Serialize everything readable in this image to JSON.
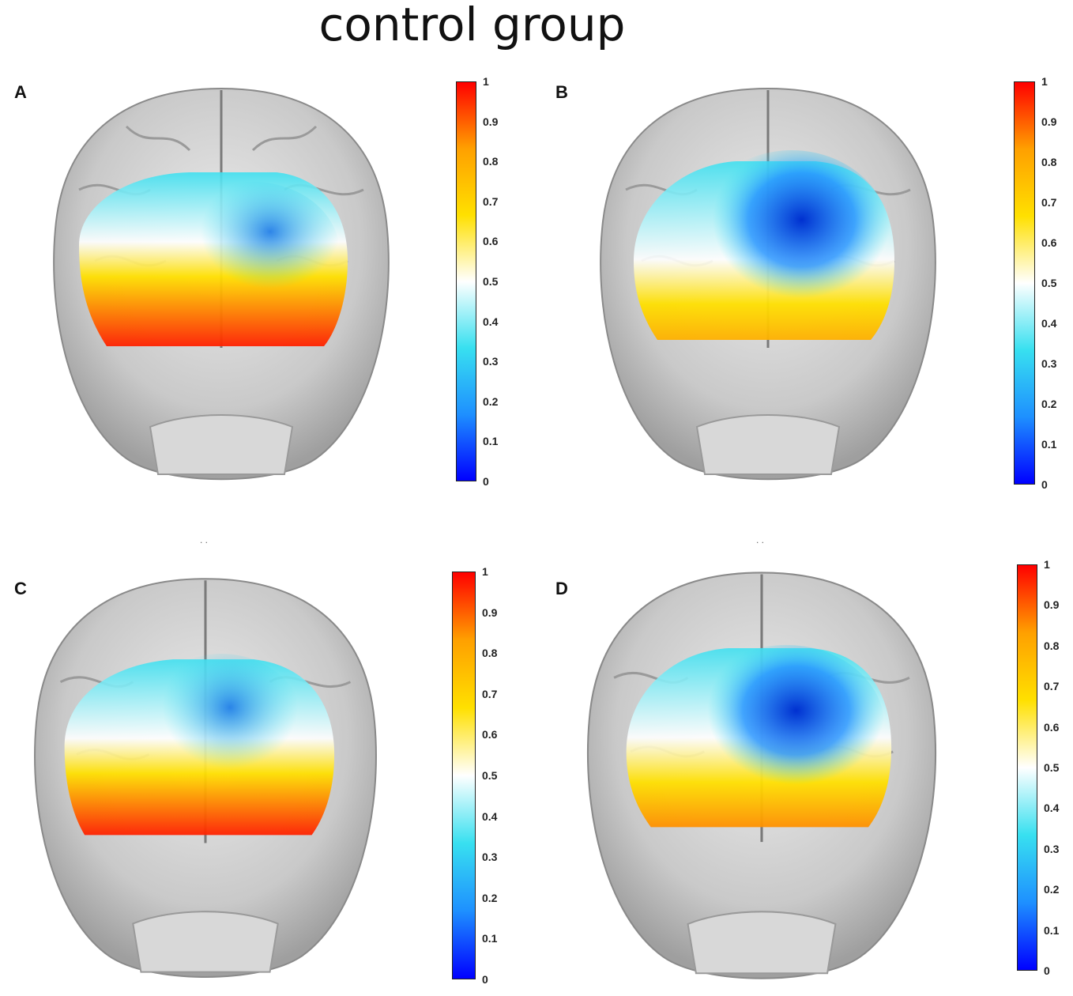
{
  "title": "control group",
  "colormap": {
    "stops": [
      "#0000ff",
      "#1e90ff",
      "#38e0f0",
      "#ffffff",
      "#ffe000",
      "#ffa000",
      "#ff0000"
    ],
    "ticks": [
      "1",
      "0.9",
      "0.8",
      "0.7",
      "0.6",
      "0.5",
      "0.4",
      "0.3",
      "0.2",
      "0.1",
      "0"
    ]
  },
  "panels": [
    {
      "label": "A",
      "id": "a"
    },
    {
      "label": "B",
      "id": "b"
    },
    {
      "label": "C",
      "id": "c"
    },
    {
      "label": "D",
      "id": "d"
    }
  ],
  "separator": ". ."
}
